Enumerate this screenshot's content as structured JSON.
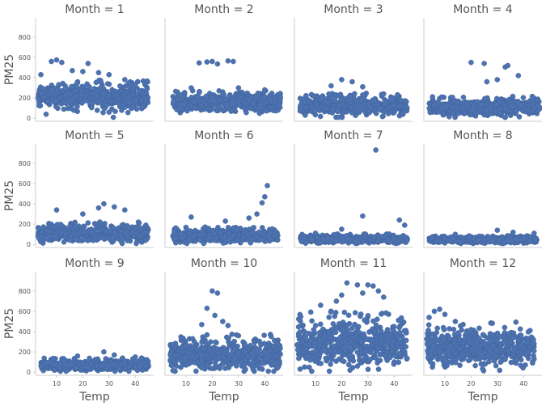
{
  "chart_data": {
    "type": "scatter",
    "layout": "facet-grid",
    "rows": 3,
    "cols": 4,
    "xlabel": "Temp",
    "ylabel": "PM25",
    "xlim": [
      2,
      47
    ],
    "ylim": [
      -30,
      990
    ],
    "xticks": [
      10,
      20,
      30,
      40
    ],
    "yticks": [
      0,
      200,
      400,
      600,
      800
    ],
    "marker_color": "#4c72b0",
    "panels": [
      {
        "title": "Month = 1",
        "temp_range": [
          3,
          45
        ],
        "pm25_core": [
          110,
          300
        ],
        "points": [
          [
            4,
            430
          ],
          [
            8,
            560
          ],
          [
            10,
            575
          ],
          [
            12,
            550
          ],
          [
            16,
            470
          ],
          [
            20,
            460
          ],
          [
            22,
            540
          ],
          [
            26,
            450
          ],
          [
            30,
            430
          ],
          [
            36,
            380
          ],
          [
            40,
            330
          ],
          [
            44,
            170
          ],
          [
            6,
            40
          ],
          [
            30,
            60
          ]
        ]
      },
      {
        "title": "Month = 2",
        "temp_range": [
          5,
          46
        ],
        "pm25_core": [
          80,
          220
        ],
        "points": [
          [
            15,
            545
          ],
          [
            18,
            555
          ],
          [
            20,
            560
          ],
          [
            22,
            535
          ],
          [
            26,
            565
          ],
          [
            28,
            560
          ],
          [
            12,
            300
          ],
          [
            30,
            300
          ],
          [
            40,
            280
          ],
          [
            44,
            150
          ]
        ]
      },
      {
        "title": "Month = 3",
        "temp_range": [
          4,
          45
        ],
        "pm25_core": [
          50,
          190
        ],
        "points": [
          [
            20,
            380
          ],
          [
            24,
            360
          ],
          [
            28,
            310
          ],
          [
            16,
            320
          ],
          [
            36,
            240
          ],
          [
            42,
            120
          ],
          [
            6,
            160
          ]
        ]
      },
      {
        "title": "Month = 4",
        "temp_range": [
          4,
          46
        ],
        "pm25_core": [
          40,
          170
        ],
        "points": [
          [
            20,
            550
          ],
          [
            25,
            540
          ],
          [
            33,
            505
          ],
          [
            34,
            520
          ],
          [
            38,
            420
          ],
          [
            26,
            360
          ],
          [
            30,
            380
          ],
          [
            44,
            100
          ]
        ]
      },
      {
        "title": "Month = 5",
        "temp_range": [
          3,
          45
        ],
        "pm25_core": [
          40,
          170
        ],
        "points": [
          [
            10,
            340
          ],
          [
            28,
            400
          ],
          [
            32,
            370
          ],
          [
            36,
            340
          ],
          [
            26,
            360
          ],
          [
            20,
            300
          ],
          [
            44,
            120
          ]
        ]
      },
      {
        "title": "Month = 6",
        "temp_range": [
          5,
          45
        ],
        "pm25_core": [
          30,
          130
        ],
        "points": [
          [
            41,
            580
          ],
          [
            40,
            470
          ],
          [
            39,
            410
          ],
          [
            37,
            300
          ],
          [
            12,
            270
          ],
          [
            34,
            260
          ],
          [
            25,
            230
          ],
          [
            6,
            60
          ]
        ]
      },
      {
        "title": "Month = 7",
        "temp_range": [
          4,
          45
        ],
        "pm25_core": [
          20,
          80
        ],
        "points": [
          [
            33,
            930
          ],
          [
            28,
            280
          ],
          [
            42,
            240
          ],
          [
            44,
            190
          ],
          [
            20,
            150
          ],
          [
            10,
            110
          ]
        ]
      },
      {
        "title": "Month = 8",
        "temp_range": [
          4,
          45
        ],
        "pm25_core": [
          20,
          70
        ],
        "points": [
          [
            30,
            140
          ],
          [
            36,
            120
          ],
          [
            44,
            110
          ],
          [
            14,
            100
          ]
        ]
      },
      {
        "title": "Month = 9",
        "temp_range": [
          4,
          45
        ],
        "pm25_core": [
          25,
          110
        ],
        "points": [
          [
            28,
            200
          ],
          [
            32,
            170
          ],
          [
            18,
            160
          ],
          [
            40,
            150
          ],
          [
            44,
            60
          ]
        ]
      },
      {
        "title": "Month = 10",
        "temp_range": [
          4,
          46
        ],
        "pm25_core": [
          40,
          280
        ],
        "points": [
          [
            20,
            800
          ],
          [
            22,
            780
          ],
          [
            18,
            630
          ],
          [
            21,
            560
          ],
          [
            24,
            500
          ],
          [
            26,
            460
          ],
          [
            16,
            470
          ],
          [
            30,
            360
          ],
          [
            36,
            300
          ],
          [
            10,
            260
          ],
          [
            44,
            80
          ]
        ]
      },
      {
        "title": "Month = 11",
        "temp_range": [
          3,
          45
        ],
        "pm25_core": [
          80,
          450
        ],
        "points": [
          [
            22,
            880
          ],
          [
            26,
            860
          ],
          [
            30,
            860
          ],
          [
            32,
            850
          ],
          [
            34,
            800
          ],
          [
            28,
            780
          ],
          [
            20,
            760
          ],
          [
            36,
            740
          ],
          [
            18,
            700
          ],
          [
            12,
            660
          ],
          [
            40,
            450
          ],
          [
            44,
            200
          ],
          [
            5,
            300
          ],
          [
            8,
            120
          ]
        ]
      },
      {
        "title": "Month = 12",
        "temp_range": [
          3,
          44
        ],
        "pm25_core": [
          90,
          380
        ],
        "points": [
          [
            8,
            620
          ],
          [
            6,
            600
          ],
          [
            10,
            570
          ],
          [
            4,
            540
          ],
          [
            14,
            500
          ],
          [
            20,
            420
          ],
          [
            30,
            380
          ],
          [
            36,
            340
          ],
          [
            42,
            200
          ],
          [
            44,
            130
          ]
        ]
      }
    ]
  }
}
